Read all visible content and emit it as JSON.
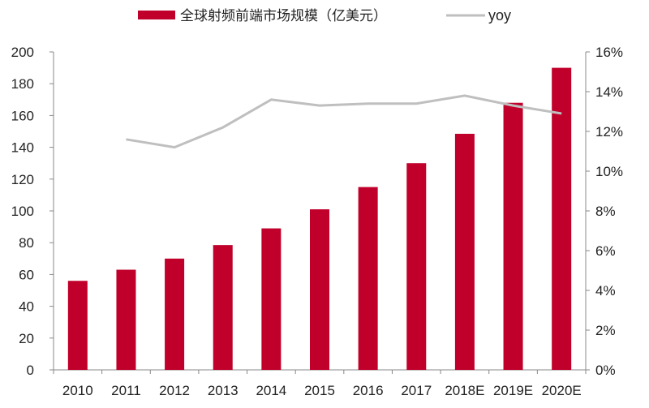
{
  "chart_data": {
    "type": "bar",
    "categories": [
      "2010",
      "2011",
      "2012",
      "2013",
      "2014",
      "2015",
      "2016",
      "2017",
      "2018E",
      "2019E",
      "2020E"
    ],
    "series": [
      {
        "name": "全球射频前端市场规模（亿美元）",
        "type": "bar",
        "axis": "left",
        "values": [
          56,
          63,
          70,
          78.5,
          89,
          101,
          115,
          130,
          148.5,
          168,
          190
        ]
      },
      {
        "name": "yoy",
        "type": "line",
        "axis": "right",
        "values": [
          null,
          11.6,
          11.2,
          12.2,
          13.6,
          13.3,
          13.4,
          13.4,
          13.8,
          13.3,
          12.9
        ]
      }
    ],
    "ylim": [
      0,
      200
    ],
    "yticks": [
      "0",
      "20",
      "40",
      "60",
      "80",
      "100",
      "120",
      "140",
      "160",
      "180",
      "200"
    ],
    "y2lim": [
      0,
      16
    ],
    "y2ticks": [
      "0%",
      "2%",
      "4%",
      "6%",
      "8%",
      "10%",
      "12%",
      "14%",
      "16%"
    ],
    "grid": false,
    "legend": "top",
    "colors": {
      "bar": "#c0002a",
      "line": "#bfbfbf"
    }
  }
}
